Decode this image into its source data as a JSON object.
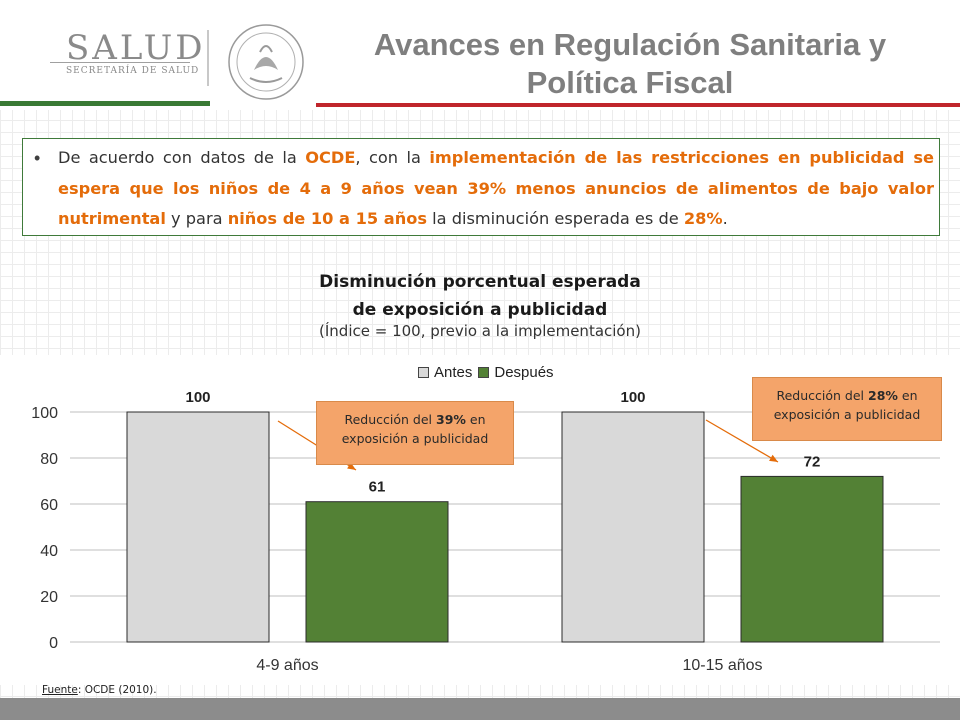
{
  "header": {
    "logo_text": "SALUD",
    "logo_subtext": "SECRETARÍA DE SALUD",
    "title_line1": "Avances en Regulación Sanitaria y",
    "title_line2": "Política Fiscal"
  },
  "colors": {
    "title": "#7f7f7f",
    "highlight": "#e46c0a",
    "green_band": "#3a7a35",
    "red_band": "#c0252b",
    "antes": "#d9d9d9",
    "despues": "#538135",
    "callout": "#f4a46a"
  },
  "paragraph": {
    "bullet": "•",
    "p1": "De acuerdo con datos de la ",
    "h1": "OCDE",
    "p2": ", con la ",
    "h2": "implementación de las restricciones en publicidad se espera que los niños de 4 a 9 años vean 39% menos anuncios de alimentos de bajo valor nutrimental",
    "p3": " y para ",
    "h3": "niños de 10 a 15 años",
    "p4": " la disminución esperada es de ",
    "h4": "28%",
    "p5": "."
  },
  "callouts": [
    {
      "pre": "Reducción del ",
      "pct": "39%",
      "post": " en exposición a publicidad"
    },
    {
      "pre": "Reducción del ",
      "pct": "28%",
      "post": " en exposición a publicidad"
    }
  ],
  "source": {
    "label": "Fuente",
    "text": ": OCDE (2010)."
  },
  "chart_data": {
    "type": "bar",
    "title_line1": "Disminución porcentual esperada",
    "title_line2": "de exposición a publicidad",
    "subtitle": "(Índice = 100, previo a la implementación)",
    "categories": [
      "4-9 años",
      "10-15 años"
    ],
    "series": [
      {
        "name": "Antes",
        "values": [
          100,
          100
        ],
        "color": "#d9d9d9"
      },
      {
        "name": "Después",
        "values": [
          61,
          72
        ],
        "color": "#538135"
      }
    ],
    "ylim": [
      0,
      100
    ],
    "yticks": [
      0,
      20,
      40,
      60,
      80,
      100
    ],
    "grid": true,
    "legend": "top-center"
  }
}
